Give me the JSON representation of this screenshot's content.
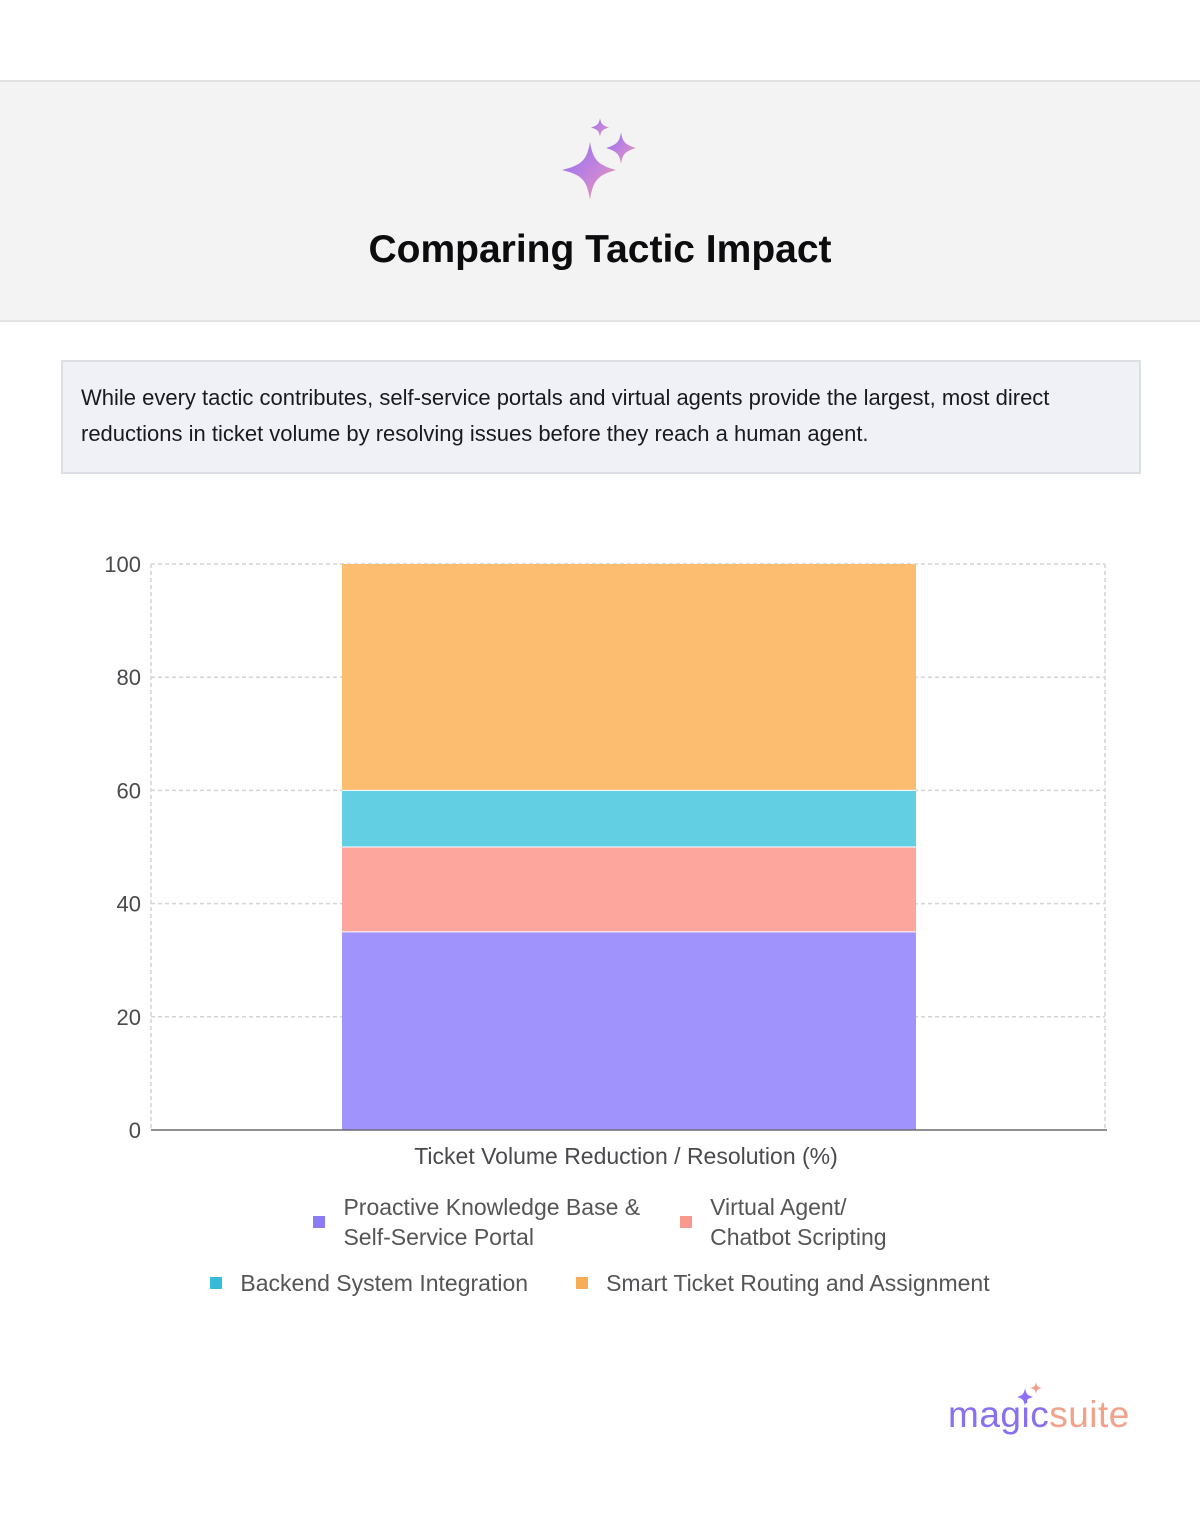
{
  "header": {
    "icon": "sparkle-icon",
    "title": "Comparing Tactic Impact"
  },
  "summary": {
    "text": "While every tactic contributes, self-service portals and virtual agents provide the largest, most direct reductions in ticket volume by resolving issues before they reach a human agent."
  },
  "chart_data": {
    "type": "bar",
    "stacked": true,
    "categories": [
      "Ticket Volume Reduction / Resolution (%)"
    ],
    "series": [
      {
        "name": "Proactive Knowledge Base & Self-Service Portal",
        "values": [
          35
        ],
        "color": "#a193fc"
      },
      {
        "name": "Virtual Agent/ Chatbot Scripting",
        "values": [
          15
        ],
        "color": "#fda69d"
      },
      {
        "name": "Backend System Integration",
        "values": [
          10
        ],
        "color": "#62cfe3"
      },
      {
        "name": "Smart Ticket Routing and Assignment",
        "values": [
          40
        ],
        "color": "#fdbd70"
      }
    ],
    "ylim": [
      0,
      100
    ],
    "yticks": [
      "0",
      "20",
      "40",
      "60",
      "80",
      "100"
    ],
    "grid": true,
    "legend": "bottom"
  },
  "legend": {
    "items": [
      {
        "label": "Proactive Knowledge Base &\nSelf-Service Portal",
        "color": "#8b7bf5"
      },
      {
        "label": "Virtual Agent/\nChatbot Scripting",
        "color": "#f7998f"
      },
      {
        "label": "Backend System Integration",
        "color": "#36bcd8"
      },
      {
        "label": "Smart Ticket Routing and Assignment",
        "color": "#f7ad55"
      }
    ]
  },
  "brand": {
    "logo_part1": "magic",
    "logo_part2": "suite",
    "logo_icon": "sparkle-icon"
  }
}
